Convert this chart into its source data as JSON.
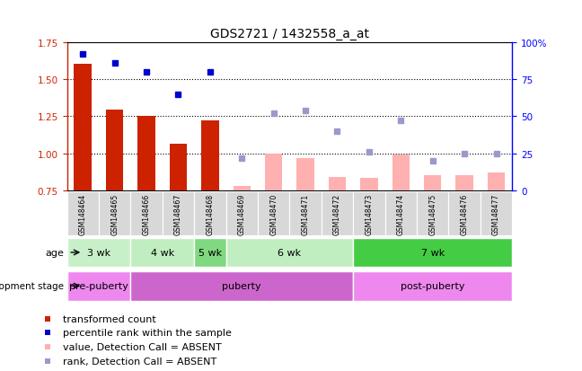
{
  "title": "GDS2721 / 1432558_a_at",
  "samples": [
    "GSM148464",
    "GSM148465",
    "GSM148466",
    "GSM148467",
    "GSM148468",
    "GSM148469",
    "GSM148470",
    "GSM148471",
    "GSM148472",
    "GSM148473",
    "GSM148474",
    "GSM148475",
    "GSM148476",
    "GSM148477"
  ],
  "transformed_count": [
    1.605,
    1.295,
    1.255,
    1.065,
    1.225,
    null,
    null,
    null,
    null,
    null,
    null,
    null,
    null,
    null
  ],
  "percentile_rank": [
    92,
    86,
    80,
    65,
    80,
    null,
    null,
    null,
    null,
    null,
    null,
    null,
    null,
    null
  ],
  "value_absent": [
    null,
    null,
    null,
    null,
    null,
    0.78,
    1.0,
    0.97,
    0.84,
    0.835,
    0.99,
    0.855,
    0.855,
    0.875
  ],
  "rank_absent": [
    null,
    null,
    null,
    null,
    null,
    22,
    52,
    54,
    40,
    26,
    47,
    20,
    25,
    25
  ],
  "age_boundaries": [
    0,
    2,
    4,
    5,
    9,
    14
  ],
  "age_labels": [
    "3 wk",
    "4 wk",
    "5 wk",
    "6 wk",
    "7 wk"
  ],
  "age_colors": [
    "#c8f0c8",
    "#c0eec0",
    "#80d880",
    "#c0eec0",
    "#44cc44"
  ],
  "dev_boundaries": [
    0,
    2,
    9,
    14
  ],
  "dev_labels": [
    "pre-puberty",
    "puberty",
    "post-puberty"
  ],
  "dev_colors": [
    "#ee88ee",
    "#cc66cc",
    "#ee88ee"
  ],
  "ylim_left": [
    0.75,
    1.75
  ],
  "ylim_right": [
    0,
    100
  ],
  "yticks_left": [
    0.75,
    1.0,
    1.25,
    1.5,
    1.75
  ],
  "yticks_right": [
    0,
    25,
    50,
    75,
    100
  ],
  "bar_color_present": "#cc2200",
  "bar_color_absent": "#ffb0b0",
  "dot_color_present": "#0000cc",
  "dot_color_absent": "#9999cc"
}
